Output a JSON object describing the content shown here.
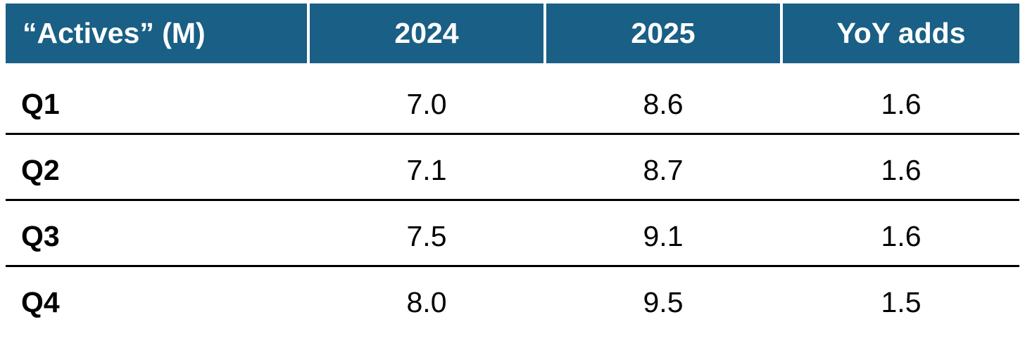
{
  "table": {
    "header": [
      "“Actives” (M)",
      "2024",
      "2025",
      "YoY adds"
    ],
    "rows": [
      [
        "Q1",
        "7.0",
        "8.6",
        "1.6"
      ],
      [
        "Q2",
        "7.1",
        "8.7",
        "1.6"
      ],
      [
        "Q3",
        "7.5",
        "9.1",
        "1.6"
      ],
      [
        "Q4",
        "8.0",
        "9.5",
        "1.5"
      ]
    ]
  }
}
